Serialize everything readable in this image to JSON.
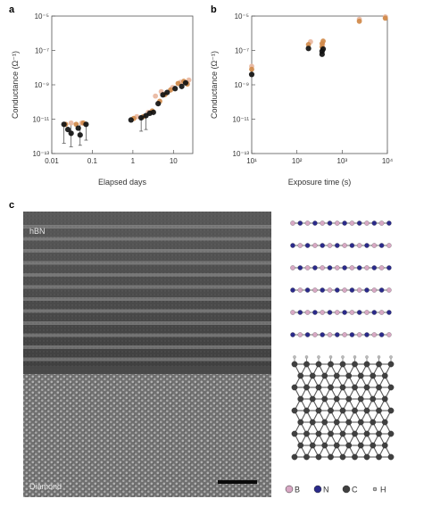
{
  "panels": {
    "a": "a",
    "b": "b",
    "c": "c"
  },
  "chart_data": [
    {
      "type": "scatter",
      "panel": "a",
      "xlabel": "Elapsed days",
      "ylabel": "Conductance (Ω⁻¹)",
      "xscale": "log",
      "yscale": "log",
      "xlim": [
        0.01,
        30
      ],
      "ylim": [
        1e-13,
        1e-05
      ],
      "xticks": [
        "0.01",
        "0.1",
        "1",
        "10"
      ],
      "yticks": [
        "10⁻¹³",
        "10⁻¹¹",
        "10⁻⁹",
        "10⁻⁷",
        "10⁻⁵"
      ],
      "colors": {
        "black": "#111111",
        "orange": "#d08a4a",
        "pink": "#e9b7a0"
      },
      "series": [
        {
          "color": "black",
          "points": [
            [
              0.02,
              5e-12
            ],
            [
              0.025,
              2.5e-12
            ],
            [
              0.03,
              1.5e-12
            ],
            [
              0.045,
              3e-12
            ],
            [
              0.05,
              1.2e-12
            ],
            [
              0.07,
              5e-12
            ],
            [
              0.9,
              9e-12
            ],
            [
              1.6,
              1.2e-11
            ],
            [
              2.1,
              1.6e-11
            ],
            [
              2.6,
              2.2e-11
            ],
            [
              3.2,
              2.5e-11
            ],
            [
              4.2,
              8e-11
            ],
            [
              5.5,
              2.6e-10
            ],
            [
              7.0,
              3.6e-10
            ],
            [
              11,
              6e-10
            ],
            [
              16,
              8e-10
            ],
            [
              20,
              1.3e-09
            ]
          ]
        },
        {
          "color": "orange",
          "points": [
            [
              0.022,
              5e-12
            ],
            [
              0.04,
              5e-12
            ],
            [
              0.06,
              6e-12
            ],
            [
              1.05,
              1.1e-11
            ],
            [
              1.8,
              1.4e-11
            ],
            [
              3.0,
              3e-11
            ],
            [
              4.6,
              1.1e-10
            ],
            [
              6.2,
              2.7e-10
            ],
            [
              8.5,
              5e-10
            ],
            [
              13,
              1.2e-09
            ],
            [
              18,
              1.6e-09
            ],
            [
              22,
              1.1e-09
            ]
          ]
        },
        {
          "color": "pink",
          "points": [
            [
              0.03,
              6e-12
            ],
            [
              0.055,
              6e-12
            ],
            [
              1.25,
              1.4e-11
            ],
            [
              2.4,
              2.5e-11
            ],
            [
              3.6,
              2.2e-10
            ],
            [
              5.0,
              4e-10
            ],
            [
              9.5,
              7e-10
            ],
            [
              15,
              1.4e-09
            ],
            [
              24,
              1.9e-09
            ]
          ]
        }
      ],
      "error_bars": [
        {
          "x": 0.02,
          "low": 4e-13,
          "high": 7e-12
        },
        {
          "x": 0.03,
          "low": 2.5e-13,
          "high": 6e-12
        },
        {
          "x": 0.05,
          "low": 3e-13,
          "high": 6e-12
        },
        {
          "x": 0.07,
          "low": 6e-13,
          "high": 7e-12
        },
        {
          "x": 1.6,
          "low": 2e-12,
          "high": 1.4e-11
        },
        {
          "x": 2.1,
          "low": 2.5e-12,
          "high": 1.8e-11
        }
      ]
    },
    {
      "type": "scatter",
      "panel": "b",
      "xlabel": "Exposure time (s)",
      "ylabel": "Conductance (Ω⁻¹)",
      "xscale": "log",
      "yscale": "log",
      "xlim": [
        10,
        10000
      ],
      "ylim": [
        1e-13,
        1e-05
      ],
      "xticks": [
        "10¹",
        "10²",
        "10³",
        "10⁴"
      ],
      "yticks": [
        "10⁻¹³",
        "10⁻¹¹",
        "10⁻⁹",
        "10⁻⁷",
        "10⁻⁵"
      ],
      "series": [
        {
          "color": "black",
          "points": [
            [
              10,
              4e-09
            ],
            [
              180,
              1.3e-07
            ],
            [
              360,
              6e-08
            ],
            [
              360,
              9e-08
            ],
            [
              380,
              1.2e-07
            ]
          ]
        },
        {
          "color": "orange",
          "points": [
            [
              10,
              8e-09
            ],
            [
              180,
              2.2e-07
            ],
            [
              360,
              1.6e-07
            ],
            [
              360,
              2.5e-07
            ],
            [
              380,
              3.5e-07
            ],
            [
              2400,
              5e-06
            ],
            [
              9000,
              7.5e-06
            ]
          ]
        },
        {
          "color": "pink",
          "points": [
            [
              10,
              1.2e-08
            ],
            [
              200,
              3.2e-07
            ],
            [
              370,
              2.2e-07
            ],
            [
              2400,
              6.5e-06
            ],
            [
              9000,
              9e-06
            ]
          ]
        }
      ]
    }
  ],
  "tem": {
    "top_label": "hBN",
    "bottom_label": "Diamond"
  },
  "legend": [
    {
      "symbol": "B",
      "label": "B",
      "color": "#d8a8c4"
    },
    {
      "symbol": "N",
      "label": "N",
      "color": "#2a2a8a"
    },
    {
      "symbol": "C",
      "label": "C",
      "color": "#404040"
    },
    {
      "symbol": "H",
      "label": "H",
      "color": "#bbbbbb"
    }
  ]
}
